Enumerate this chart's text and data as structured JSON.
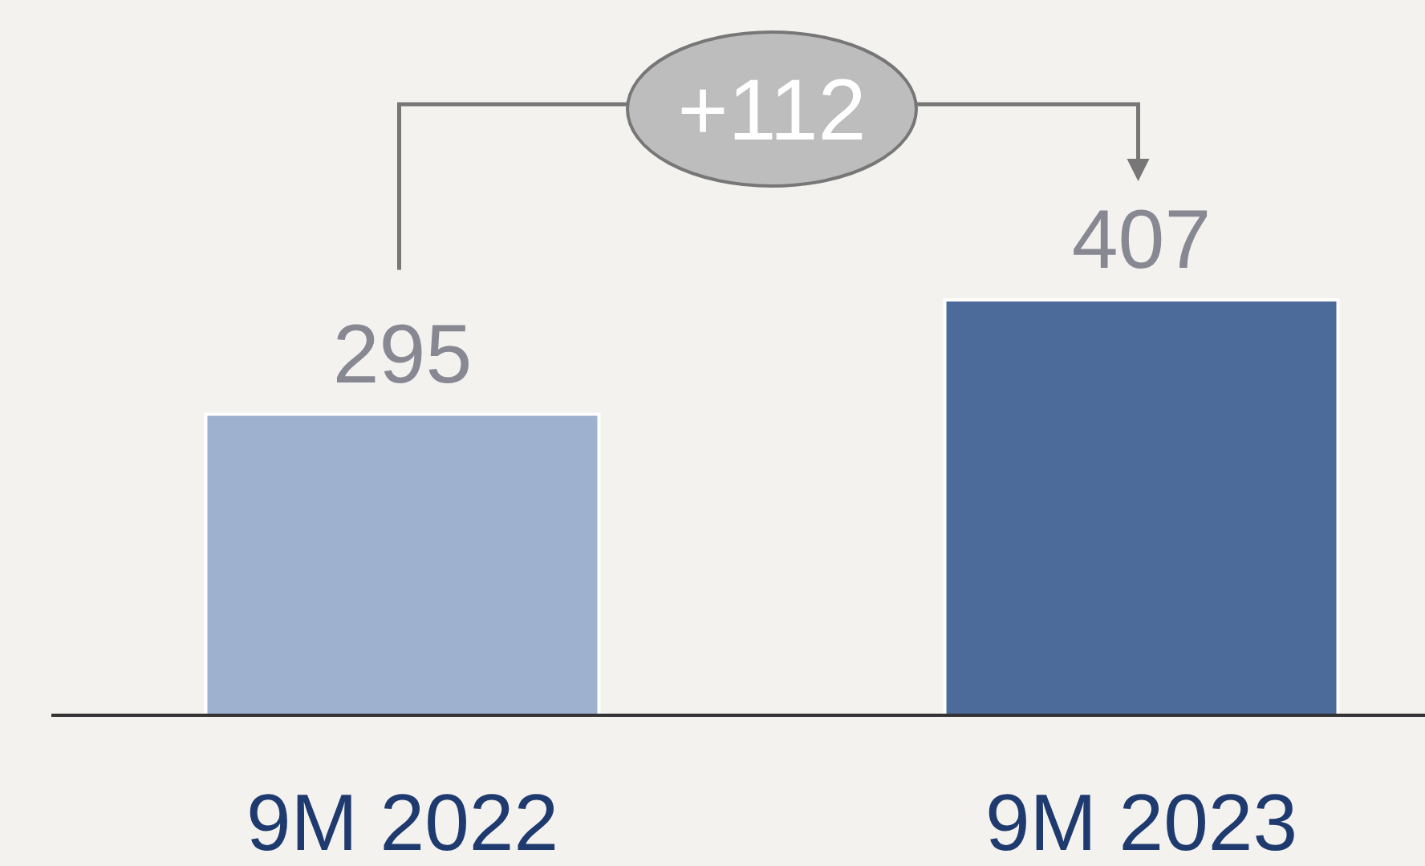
{
  "chart_data": {
    "type": "bar",
    "categories": [
      "9M 2022",
      "9M 2023"
    ],
    "values": [
      295,
      407
    ],
    "colors": [
      "#9eb1cf",
      "#4c6b9a"
    ],
    "data_labels": true,
    "annotations": [
      "+112"
    ]
  }
}
